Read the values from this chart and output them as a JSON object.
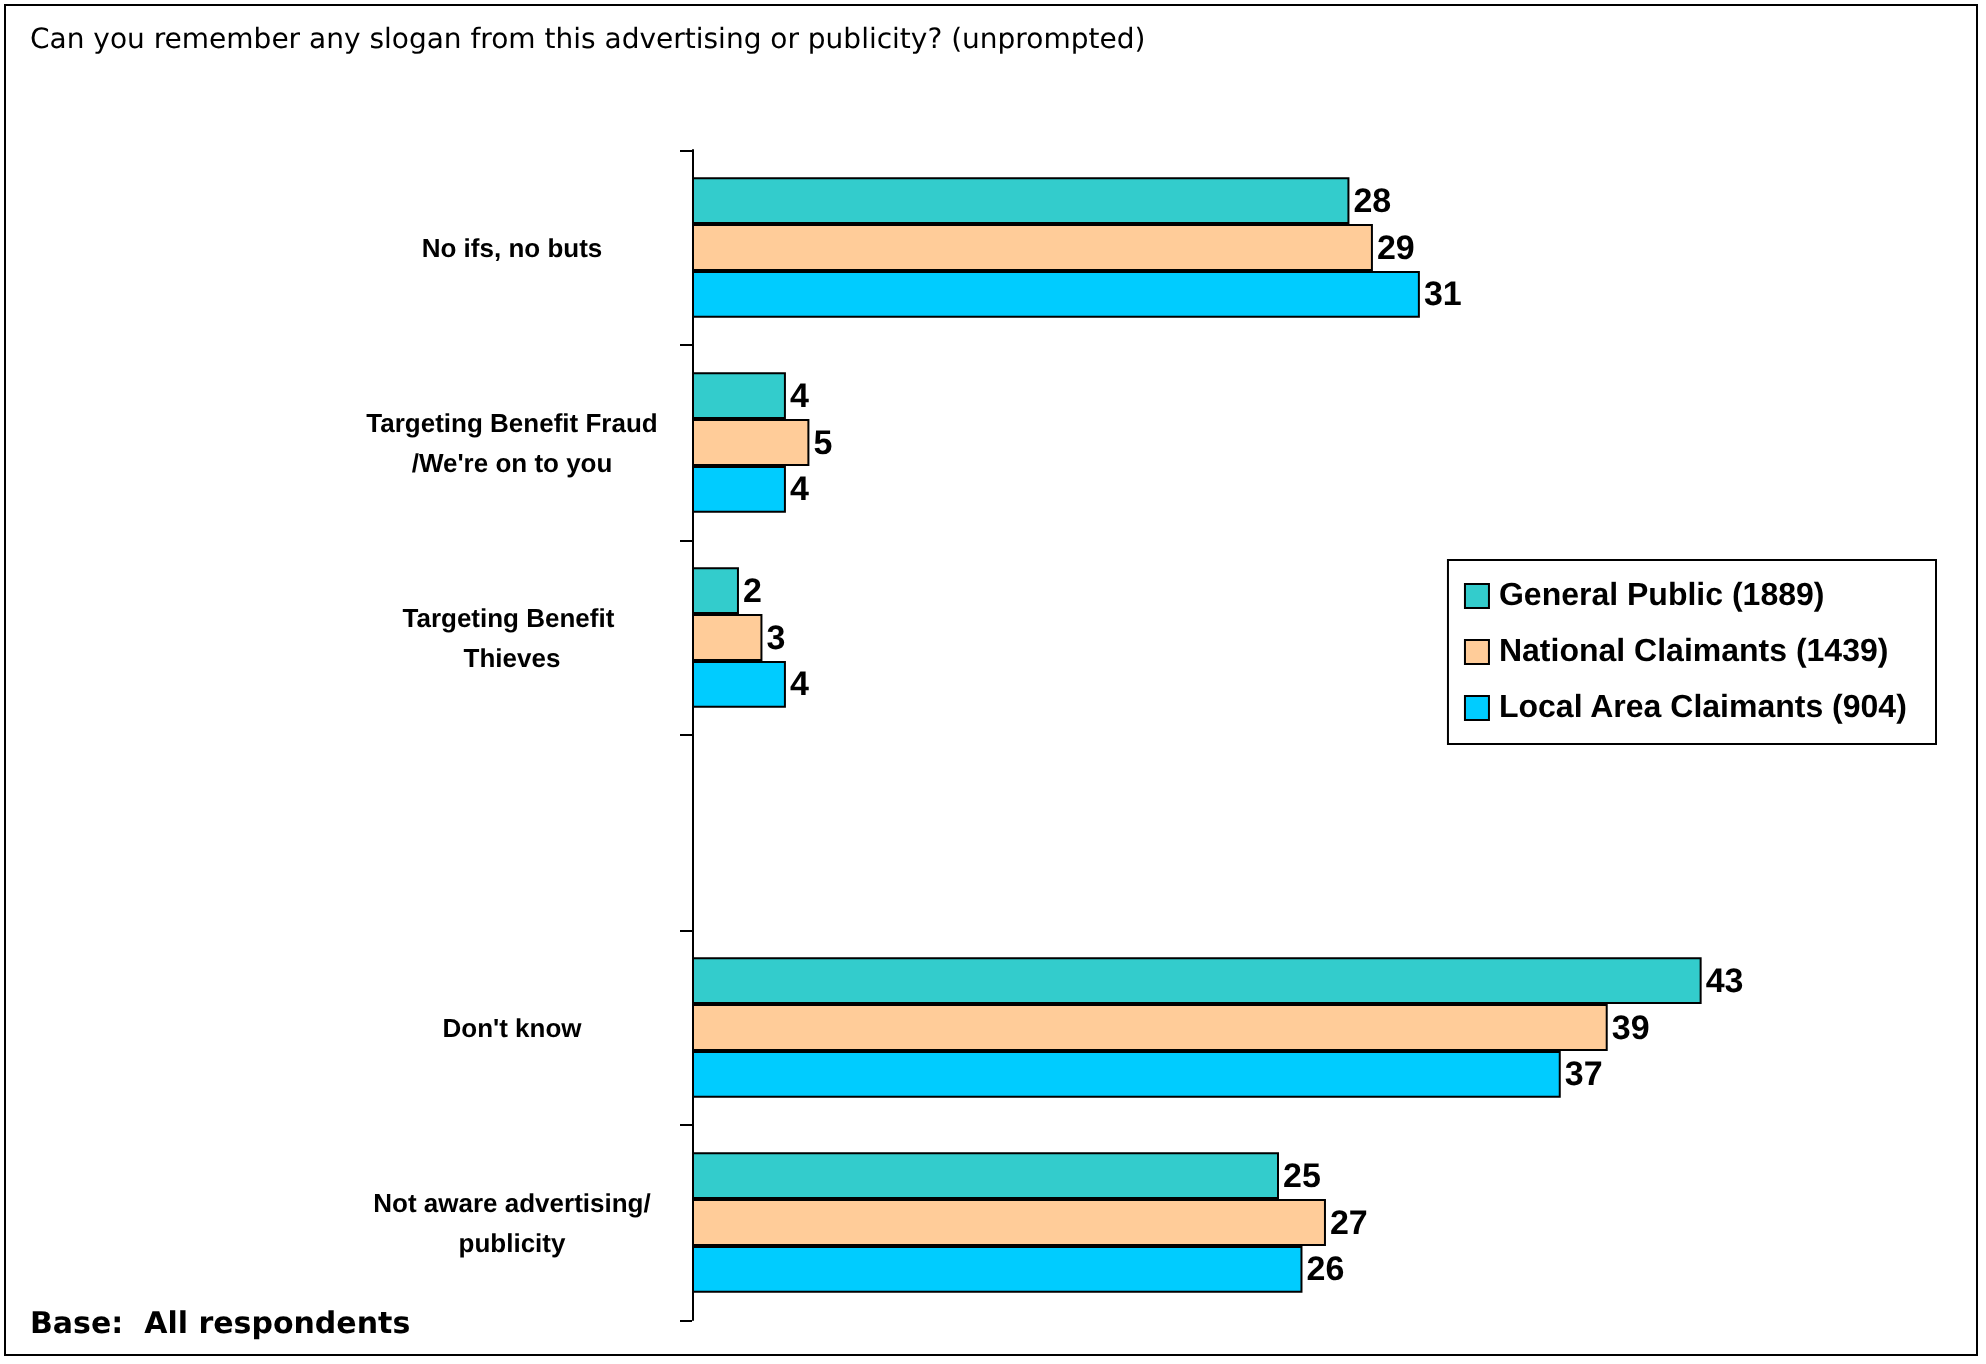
{
  "chart_data": {
    "type": "bar",
    "orientation": "horizontal",
    "title": "Can you remember any slogan from this advertising or publicity? (unprompted)",
    "categories": [
      "No ifs, no buts",
      "Targeting Benefit Fraud/We're on to you",
      "Targeting Benefit Thieves",
      null,
      "Don't know",
      "Not aware advertising/publicity"
    ],
    "series": [
      {
        "name": "General Public (1889)",
        "color": "#33cccc",
        "values": [
          28,
          4,
          2,
          null,
          43,
          25
        ]
      },
      {
        "name": "National Claimants (1439)",
        "color": "#ffcc99",
        "values": [
          29,
          5,
          3,
          null,
          39,
          27
        ]
      },
      {
        "name": "Local Area Claimants (904)",
        "color": "#00ccff",
        "values": [
          31,
          4,
          4,
          null,
          37,
          26
        ]
      }
    ],
    "data_labels": true,
    "legend": "right",
    "tick_labels": "y",
    "annotations": [
      "Base:  All respondents"
    ]
  }
}
